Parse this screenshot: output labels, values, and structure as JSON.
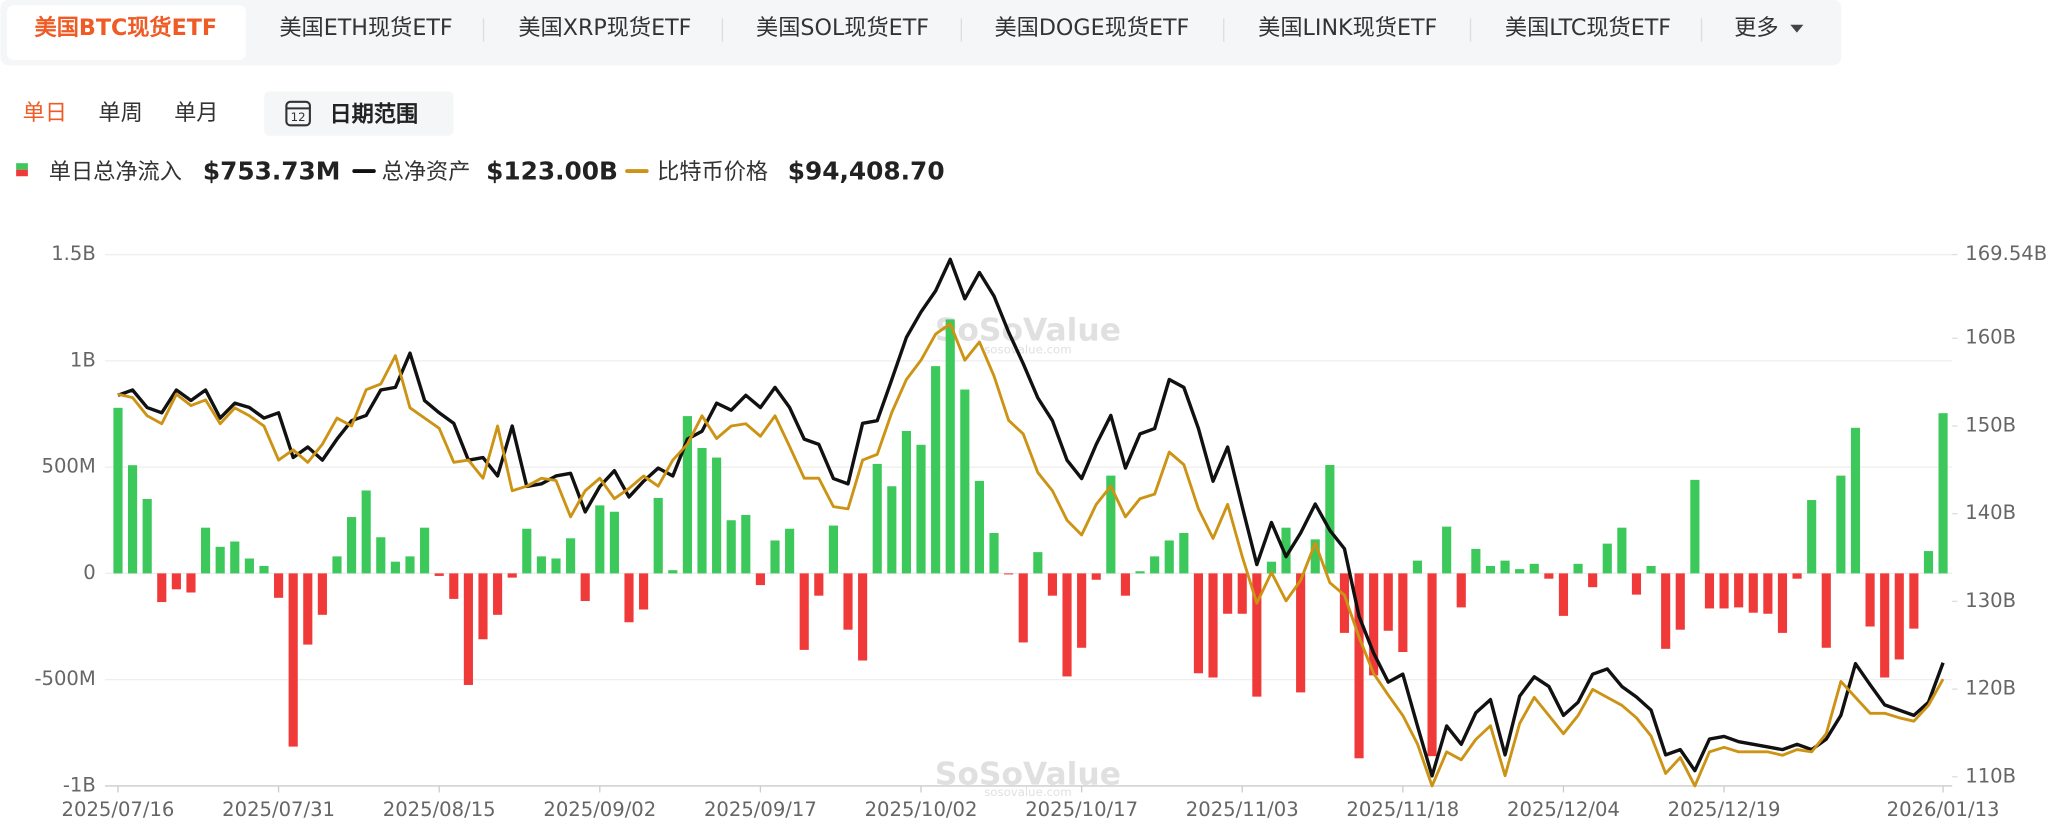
{
  "tabs": [
    "美国BTC现货ETF",
    "美国ETH现货ETF",
    "美国XRP现货ETF",
    "美国SOL现货ETF",
    "美国DOGE现货ETF",
    "美国LINK现货ETF",
    "美国LTC现货ETF"
  ],
  "active_tab": 0,
  "more": "更多",
  "periods": [
    "单日",
    "单周",
    "单月"
  ],
  "active_period": 0,
  "date_range": "日期范围",
  "date_range_icon": "12",
  "chart_data": {
    "type": "bar-line",
    "watermark": "SoSoValue",
    "watermark_sub": "sosovalue.com",
    "categories": [
      "2025/07/16",
      null,
      null,
      null,
      null,
      null,
      null,
      null,
      null,
      null,
      null,
      "2025/07/31",
      null,
      null,
      null,
      null,
      null,
      null,
      null,
      null,
      null,
      null,
      "2025/08/15",
      null,
      null,
      null,
      null,
      null,
      null,
      null,
      null,
      null,
      null,
      "2025/09/02",
      null,
      null,
      null,
      null,
      null,
      null,
      null,
      null,
      null,
      null,
      "2025/09/17",
      null,
      null,
      null,
      null,
      null,
      null,
      null,
      null,
      null,
      null,
      "2025/10/02",
      null,
      null,
      null,
      null,
      null,
      null,
      null,
      null,
      null,
      null,
      "2025/10/17",
      null,
      null,
      null,
      null,
      null,
      null,
      null,
      null,
      null,
      null,
      "2025/11/03",
      null,
      null,
      null,
      null,
      null,
      null,
      null,
      null,
      null,
      null,
      "2025/11/18",
      null,
      null,
      null,
      null,
      null,
      null,
      null,
      null,
      null,
      null,
      "2025/12/04",
      null,
      null,
      null,
      null,
      null,
      null,
      null,
      null,
      null,
      null,
      "2025/12/19",
      null,
      null,
      null,
      null,
      null,
      null,
      null,
      null,
      null,
      null,
      null,
      null,
      null,
      null,
      "2026/01/13"
    ],
    "ylim": [
      -1000,
      1500
    ],
    "yticks": [
      {
        "value": -1000,
        "label": "-1B"
      },
      {
        "value": -500,
        "label": "-500M"
      },
      0,
      {
        "value": 500,
        "label": "500M"
      },
      {
        "value": 1000,
        "label": "1B"
      },
      {
        "value": 1500,
        "label": "1.5B"
      }
    ],
    "y2lim": [
      108.96,
      169.54
    ],
    "y2ticks": [
      {
        "value": 110,
        "label": "110B"
      },
      {
        "value": 120,
        "label": "120B"
      },
      {
        "value": 130,
        "label": "130B"
      },
      {
        "value": 140,
        "label": "140B"
      },
      {
        "value": 150,
        "label": "150B"
      },
      {
        "value": 160,
        "label": "160B"
      },
      {
        "value": 169.54,
        "label": "169.54B"
      }
    ],
    "y3lim": [
      85000,
      131800
    ],
    "grid": true,
    "series": [
      {
        "name": "单日总净流入",
        "legend_value": "$753.73M",
        "kind": "bar",
        "positive_color": "#3cc85a",
        "negative_color": "#f03a3a",
        "values": [
          779,
          509,
          350,
          -135,
          -75,
          -90,
          215,
          125,
          150,
          70,
          35,
          -115,
          -815,
          -335,
          -195,
          80,
          265,
          390,
          170,
          55,
          80,
          215,
          -12,
          -120,
          -525,
          -310,
          -195,
          -20,
          210,
          80,
          70,
          165,
          -130,
          320,
          290,
          -230,
          -170,
          355,
          15,
          740,
          590,
          545,
          250,
          275,
          -55,
          155,
          210,
          -360,
          -105,
          225,
          -265,
          -410,
          515,
          410,
          670,
          605,
          975,
          1195,
          865,
          435,
          190,
          -5,
          -325,
          100,
          -105,
          -485,
          -350,
          -30,
          460,
          -105,
          10,
          80,
          155,
          190,
          -470,
          -490,
          -190,
          -190,
          -580,
          55,
          215,
          -560,
          160,
          510,
          -280,
          -870,
          -480,
          -270,
          -370,
          60,
          -860,
          220,
          -160,
          115,
          35,
          60,
          20,
          45,
          -25,
          -200,
          45,
          -65,
          140,
          215,
          -100,
          35,
          -355,
          -265,
          440,
          -165,
          -165,
          -160,
          -185,
          -190,
          -280,
          -25,
          345,
          -350,
          460,
          685,
          -250,
          -490,
          -405,
          -260,
          105,
          753.73
        ]
      },
      {
        "name": "总净资产",
        "legend_value": "$123.00B",
        "kind": "line",
        "axis": "y2",
        "color": "#111111",
        "values": [
          153.5,
          154.1,
          152.1,
          151.5,
          154.1,
          152.9,
          154.1,
          150.9,
          152.6,
          152.1,
          150.9,
          151.5,
          146.4,
          147.6,
          146.1,
          148.5,
          150.6,
          151.2,
          154.1,
          154.4,
          158.3,
          152.9,
          151.5,
          150.3,
          146.1,
          146.4,
          144.3,
          150.0,
          143.1,
          143.4,
          144.3,
          144.6,
          140.2,
          143.1,
          144.9,
          141.9,
          143.7,
          145.2,
          144.3,
          148.5,
          149.4,
          152.6,
          151.8,
          153.5,
          152.1,
          154.4,
          152.1,
          148.5,
          147.9,
          144.0,
          143.4,
          150.3,
          150.6,
          155.3,
          160.1,
          163.0,
          165.4,
          169.0,
          164.5,
          167.5,
          164.8,
          160.7,
          157.1,
          153.2,
          150.6,
          146.1,
          144.0,
          147.9,
          151.2,
          145.2,
          149.1,
          149.7,
          155.3,
          154.4,
          149.7,
          143.7,
          147.6,
          140.8,
          134.2,
          139.0,
          135.1,
          137.8,
          141.1,
          138.1,
          136.0,
          128.3,
          124.1,
          120.8,
          121.7,
          115.8,
          110.1,
          115.8,
          113.7,
          117.3,
          118.8,
          112.5,
          119.2,
          121.4,
          120.3,
          117.0,
          118.5,
          121.7,
          122.3,
          120.3,
          119.1,
          117.6,
          112.5,
          113.1,
          110.7,
          114.3,
          114.6,
          114.0,
          113.7,
          113.4,
          113.1,
          113.7,
          113.1,
          114.3,
          117.0,
          122.9,
          120.5,
          118.2,
          117.6,
          117.0,
          118.5,
          123.0
        ]
      },
      {
        "name": "比特币价格",
        "legend_value": "$94,408.70",
        "kind": "line",
        "axis": "y3",
        "color": "#cc9314",
        "values": [
          119500,
          119200,
          117600,
          116900,
          119500,
          118500,
          119000,
          116900,
          118300,
          117600,
          116700,
          113700,
          114600,
          113500,
          115100,
          117400,
          116700,
          119900,
          120400,
          122900,
          118300,
          117400,
          116500,
          113500,
          113700,
          112100,
          116700,
          111000,
          111400,
          112100,
          111900,
          108700,
          111000,
          112100,
          110300,
          111200,
          112300,
          111400,
          113700,
          115100,
          117600,
          115600,
          116700,
          116900,
          115800,
          117600,
          114900,
          112100,
          112100,
          109600,
          109400,
          113700,
          114200,
          117900,
          120800,
          122500,
          124800,
          125700,
          122500,
          124100,
          121100,
          117200,
          116000,
          112600,
          111000,
          108400,
          107100,
          109800,
          111400,
          108700,
          110300,
          110700,
          114400,
          113300,
          109400,
          106800,
          109800,
          105200,
          101100,
          103800,
          101300,
          103100,
          106400,
          102900,
          101800,
          98100,
          94900,
          93000,
          91200,
          88700,
          85000,
          88000,
          87300,
          89100,
          90300,
          85900,
          90500,
          92800,
          91200,
          89600,
          91200,
          93500,
          92800,
          92100,
          91000,
          89400,
          86100,
          87500,
          85000,
          88000,
          88400,
          88000,
          88000,
          88000,
          87700,
          88200,
          88000,
          89600,
          94200,
          92800,
          91400,
          91400,
          91000,
          90700,
          92100,
          94408.7
        ]
      }
    ]
  }
}
